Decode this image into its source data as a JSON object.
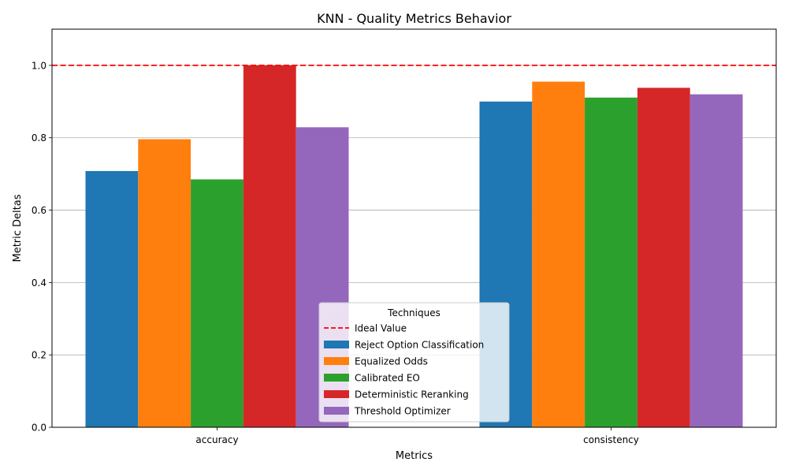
{
  "chart_data": {
    "type": "bar",
    "title": "KNN - Quality Metrics Behavior",
    "xlabel": "Metrics",
    "ylabel": "Metric Deltas",
    "ylim": [
      0,
      1.1
    ],
    "yticks": [
      0.0,
      0.2,
      0.4,
      0.6,
      0.8,
      1.0
    ],
    "ytick_labels": [
      "0.0",
      "0.2",
      "0.4",
      "0.6",
      "0.8",
      "1.0"
    ],
    "grid": "y",
    "categories": [
      "accuracy",
      "consistency"
    ],
    "series": [
      {
        "name": "Reject Option Classification",
        "color": "#1f77b4",
        "values": [
          0.708,
          0.9
        ]
      },
      {
        "name": "Equalized Odds",
        "color": "#ff7f0e",
        "values": [
          0.796,
          0.955
        ]
      },
      {
        "name": "Calibrated EO",
        "color": "#2ca02c",
        "values": [
          0.685,
          0.911
        ]
      },
      {
        "name": "Deterministic Reranking",
        "color": "#d62728",
        "values": [
          1.0,
          0.938
        ]
      },
      {
        "name": "Threshold Optimizer",
        "color": "#9467bd",
        "values": [
          0.829,
          0.92
        ]
      }
    ],
    "reference_line": {
      "name": "Ideal Value",
      "y": 1.0,
      "color": "#ff0000",
      "style": "dashed"
    },
    "legend": {
      "title": "Techniques",
      "placement": "lower-center"
    }
  }
}
